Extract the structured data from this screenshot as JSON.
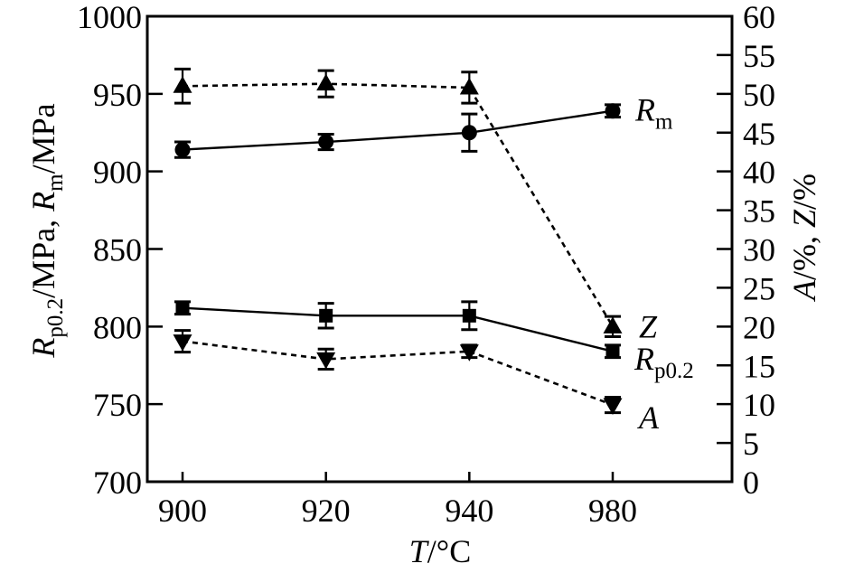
{
  "chart_data": {
    "type": "line",
    "title": "",
    "background": "#ffffff",
    "foreground": "#000000",
    "x_axis": {
      "label": "T/°C",
      "label_segments": [
        {
          "t": "T",
          "i": true
        },
        {
          "t": "/°C"
        }
      ],
      "categories": [
        "900",
        "920",
        "940",
        "980"
      ],
      "spacing": "equal"
    },
    "y_left": {
      "label": "Rp0.2/MPa, Rm/MPa",
      "label_segments": [
        {
          "t": "R",
          "i": true
        },
        {
          "t": "p0.2",
          "sub": true
        },
        {
          "t": "/MPa, "
        },
        {
          "t": "R",
          "i": true
        },
        {
          "t": "m",
          "sub": true
        },
        {
          "t": "/MPa"
        }
      ],
      "min": 700,
      "max": 1000,
      "tick_step": 50,
      "ticks": [
        1000,
        950,
        900,
        850,
        800,
        750,
        700
      ]
    },
    "y_right": {
      "label": "A/%, Z/%",
      "label_segments": [
        {
          "t": "A",
          "i": true
        },
        {
          "t": "/%, "
        },
        {
          "t": "Z",
          "i": true
        },
        {
          "t": "/%"
        }
      ],
      "min": 0,
      "max": 60,
      "tick_step": 5,
      "ticks": [
        60,
        55,
        50,
        45,
        40,
        35,
        30,
        25,
        20,
        15,
        10,
        5,
        0
      ]
    },
    "grid": false,
    "legend": "inline-labels",
    "series": [
      {
        "name": "Rm",
        "label_segments": [
          {
            "t": "R",
            "i": true
          },
          {
            "t": "m",
            "sub": true
          }
        ],
        "axis": "left",
        "marker": "circle",
        "line": "solid",
        "values": [
          914,
          919,
          925,
          939
        ],
        "errors": [
          5,
          5,
          12,
          4
        ],
        "label_offset": [
          25,
          11
        ]
      },
      {
        "name": "Z",
        "label_segments": [
          {
            "t": "Z",
            "i": true
          }
        ],
        "axis": "right",
        "marker": "triangle-up",
        "line": "dashed",
        "values": [
          51.0,
          51.3,
          50.8,
          20.0
        ],
        "errors": [
          2.2,
          1.7,
          2.0,
          1.3
        ],
        "label_offset": [
          29,
          12
        ]
      },
      {
        "name": "Rp0.2",
        "label_segments": [
          {
            "t": "R",
            "i": true
          },
          {
            "t": "p0.2",
            "sub": true
          }
        ],
        "axis": "left",
        "marker": "square",
        "line": "solid",
        "values": [
          812,
          807,
          807,
          784
        ],
        "errors": [
          4,
          8,
          9,
          4
        ],
        "label_offset": [
          24,
          20
        ]
      },
      {
        "name": "A",
        "label_segments": [
          {
            "t": "A",
            "i": true
          }
        ],
        "axis": "right",
        "marker": "triangle-down",
        "line": "dashed",
        "values": [
          18.1,
          15.8,
          16.8,
          9.9
        ],
        "errors": [
          1.4,
          1.3,
          0.8,
          1.0
        ],
        "label_offset": [
          29,
          26
        ]
      }
    ]
  }
}
